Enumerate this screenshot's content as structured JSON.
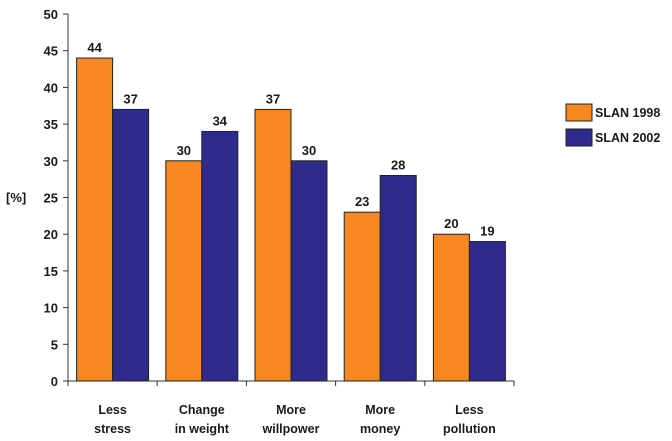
{
  "chart_data": {
    "type": "bar",
    "title": "",
    "ylabel": "[%]",
    "xlabel": "",
    "ylim": [
      0,
      50
    ],
    "yticks": [
      0,
      5,
      10,
      15,
      20,
      25,
      30,
      35,
      40,
      45,
      50
    ],
    "categories": [
      [
        "Less",
        "stress"
      ],
      [
        "Change",
        "in weight"
      ],
      [
        "More",
        "willpower"
      ],
      [
        "More",
        "money"
      ],
      [
        "Less",
        "pollution"
      ]
    ],
    "series": [
      {
        "name": "SLAN 1998",
        "color": "#f7881f",
        "values": [
          44,
          30,
          37,
          23,
          20
        ]
      },
      {
        "name": "SLAN 2002",
        "color": "#2e2b8c",
        "values": [
          37,
          34,
          30,
          28,
          19
        ]
      }
    ],
    "legend_position": "right",
    "grid": false
  }
}
